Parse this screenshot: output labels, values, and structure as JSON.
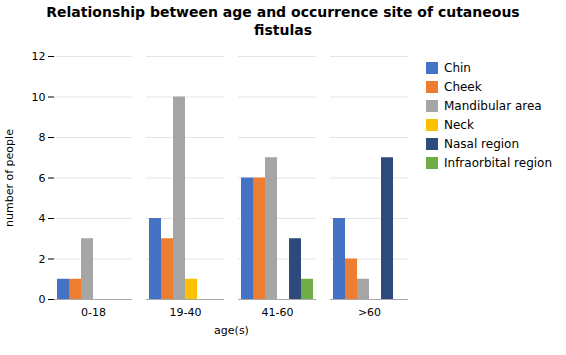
{
  "chart_data": {
    "type": "bar",
    "title": "Relationship between age and occurrence site of cutaneous\nfistulas",
    "xlabel": "age(s)",
    "ylabel": "number of people",
    "categories": [
      "0-18",
      "19-40",
      "41-60",
      ">60"
    ],
    "series": [
      {
        "name": "Chin",
        "color": "#4472C4",
        "values": [
          1,
          4,
          6,
          4
        ]
      },
      {
        "name": "Cheek",
        "color": "#ED7D31",
        "values": [
          1,
          3,
          6,
          2
        ]
      },
      {
        "name": "Mandibular area",
        "color": "#A5A5A5",
        "values": [
          3,
          10,
          7,
          1
        ]
      },
      {
        "name": "Neck",
        "color": "#FFC000",
        "values": [
          0,
          1,
          0,
          0
        ]
      },
      {
        "name": "Nasal region",
        "color": "#2E4A7C",
        "values": [
          0,
          0,
          3,
          7
        ]
      },
      {
        "name": "Infraorbital region",
        "color": "#70AD47",
        "values": [
          0,
          0,
          1,
          0
        ]
      }
    ],
    "ylim": [
      0,
      12
    ],
    "yticks": [
      0,
      2,
      4,
      6,
      8,
      10,
      12
    ],
    "grid": true,
    "legend": "right"
  }
}
